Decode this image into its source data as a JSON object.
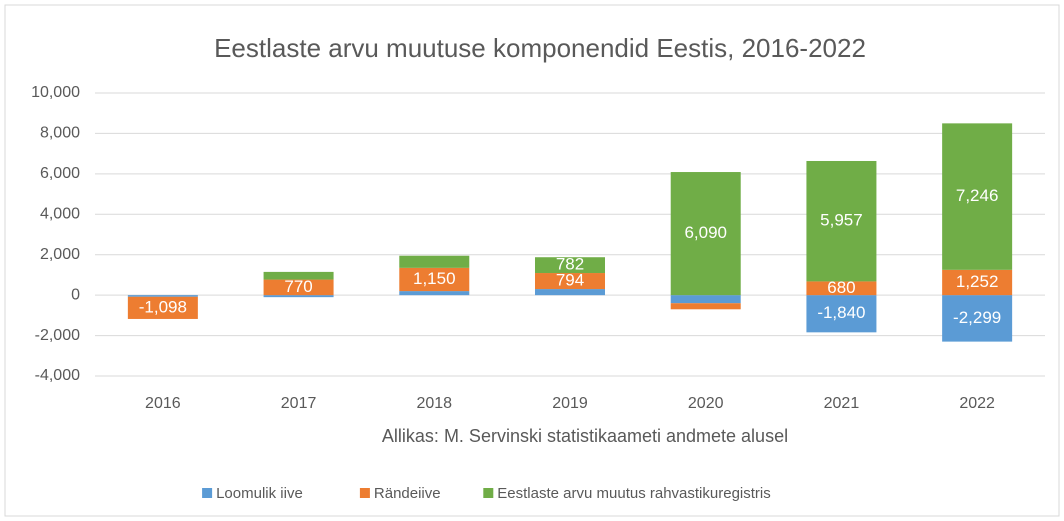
{
  "chart_data": {
    "type": "stacked-bar",
    "title": "Eestlaste arvu muutuse komponendid Eestis, 2016-2022",
    "source": "Allikas: M. Servinski statistikaameti andmete alusel",
    "categories": [
      "2016",
      "2017",
      "2018",
      "2019",
      "2020",
      "2021",
      "2022"
    ],
    "series": [
      {
        "name": "Loomulik iive",
        "color": "#5b9bd5",
        "values": [
          -80,
          -100,
          200,
          300,
          -400,
          -1840,
          -2299
        ],
        "value_labels": [
          null,
          null,
          null,
          null,
          null,
          "-1,840",
          "-2,299"
        ]
      },
      {
        "name": "Rändeiive",
        "color": "#ed7d31",
        "values": [
          -1098,
          770,
          1150,
          794,
          -300,
          680,
          1252
        ],
        "value_labels": [
          "-1,098",
          "770",
          "1,150",
          "794",
          null,
          "680",
          "1,252"
        ]
      },
      {
        "name": "Eestlaste arvu muutus rahvastikuregistris",
        "color": "#70ad47",
        "values": [
          0,
          380,
          600,
          782,
          6090,
          5957,
          7246
        ],
        "value_labels": [
          null,
          null,
          null,
          "782",
          "6,090",
          "5,957",
          "7,246"
        ]
      }
    ],
    "ylim": [
      -4000,
      10000
    ],
    "yticks": [
      {
        "value": -4000,
        "label": "-4,000"
      },
      {
        "value": -2000,
        "label": "-2,000"
      },
      0,
      {
        "value": 2000,
        "label": "2,000"
      },
      {
        "value": 4000,
        "label": "4,000"
      },
      {
        "value": 6000,
        "label": "6,000"
      },
      {
        "value": 8000,
        "label": "8,000"
      },
      {
        "value": 10000,
        "label": "10,000"
      }
    ],
    "grid": true,
    "legend": "bottom"
  }
}
